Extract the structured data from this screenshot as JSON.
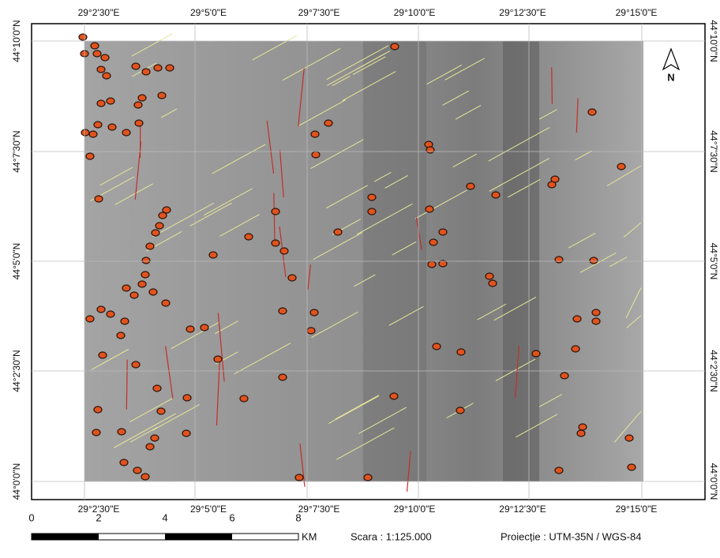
{
  "map": {
    "top_labels": [
      "29°2'30\"E",
      "29°5'0\"E",
      "29°7'30\"E",
      "29°10'0\"E",
      "29°12'30\"E",
      "29°15'0\"E"
    ],
    "bottom_labels": [
      "29°2'30\"E",
      "29°5'0\"E",
      "29°7'30\"E",
      "29°10'0\"E",
      "29°12'30\"E",
      "29°15'0\"E"
    ],
    "left_labels": [
      "44°10'0\"N",
      "44°7'30\"N",
      "44°5'0\"N",
      "44°2'30\"N",
      "44°0'0\"N"
    ],
    "right_labels": [
      "44°10'0\"N",
      "44°7'30\"N",
      "44°5'0\"N",
      "44°2'30\"N",
      "44°0'0\"N"
    ],
    "north": "N",
    "scale_bar": {
      "ticks": [
        0,
        2,
        4,
        6,
        8
      ],
      "unit": "KM"
    },
    "scale": "Scara : 1:125.000",
    "projection": "Proiecție : UTM-35N / WGS-84"
  }
}
